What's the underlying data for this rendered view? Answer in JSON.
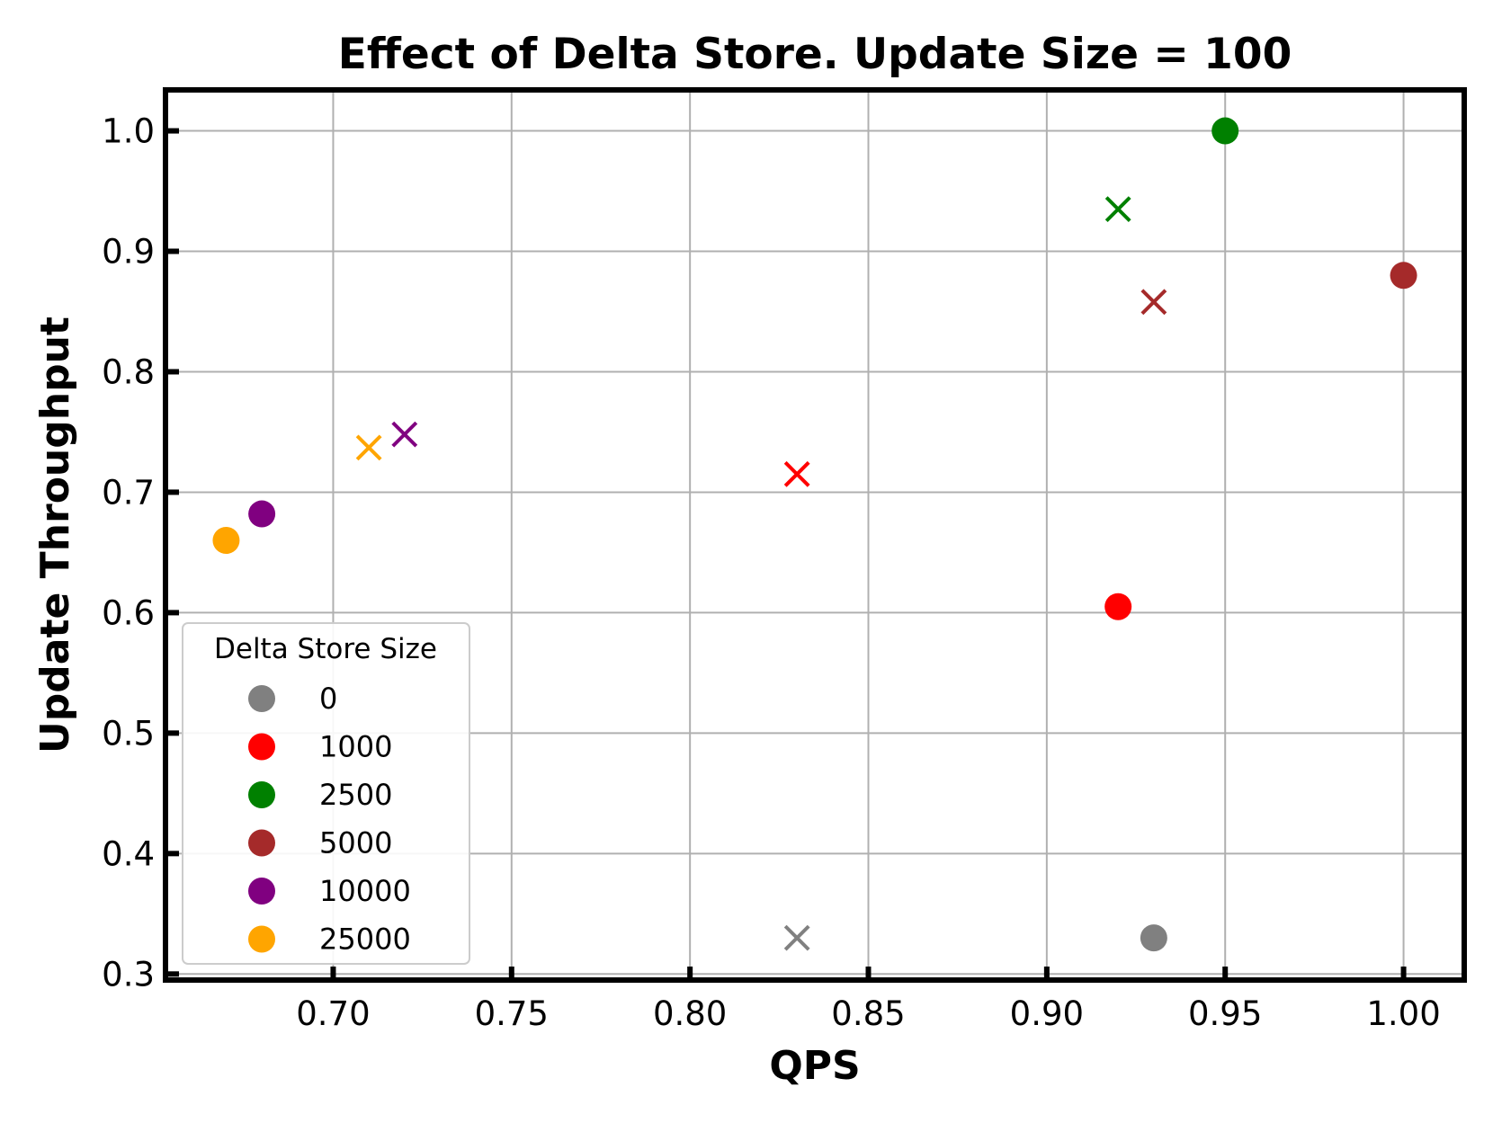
{
  "chart_data": {
    "type": "scatter",
    "title": "Effect of Delta Store. Update Size = 100",
    "xlabel": "QPS",
    "ylabel": "Update Throughput",
    "xlim": [
      0.653,
      1.017
    ],
    "ylim": [
      0.295,
      1.034
    ],
    "xticks": [
      0.7,
      0.75,
      0.8,
      0.85,
      0.9,
      0.95,
      1.0
    ],
    "xtick_labels": [
      "0.70",
      "0.75",
      "0.80",
      "0.85",
      "0.90",
      "0.95",
      "1.00"
    ],
    "yticks": [
      0.3,
      0.4,
      0.5,
      0.6,
      0.7,
      0.8,
      0.9,
      1.0
    ],
    "ytick_labels": [
      "0.3",
      "0.4",
      "0.5",
      "0.6",
      "0.7",
      "0.8",
      "0.9",
      "1.0"
    ],
    "grid": true,
    "legend": {
      "title": "Delta Store Size",
      "placement": "lower-left"
    },
    "series": [
      {
        "name": "0",
        "color": "#808080",
        "circle": {
          "x": 0.93,
          "y": 0.33
        },
        "cross": {
          "x": 0.83,
          "y": 0.33
        }
      },
      {
        "name": "1000",
        "color": "#ff0000",
        "circle": {
          "x": 0.92,
          "y": 0.605
        },
        "cross": {
          "x": 0.83,
          "y": 0.715
        }
      },
      {
        "name": "2500",
        "color": "#008000",
        "circle": {
          "x": 0.95,
          "y": 1.0
        },
        "cross": {
          "x": 0.92,
          "y": 0.935
        }
      },
      {
        "name": "5000",
        "color": "#a52a2a",
        "circle": {
          "x": 1.0,
          "y": 0.88
        },
        "cross": {
          "x": 0.93,
          "y": 0.858
        }
      },
      {
        "name": "10000",
        "color": "#800080",
        "circle": {
          "x": 0.68,
          "y": 0.682
        },
        "cross": {
          "x": 0.72,
          "y": 0.748
        }
      },
      {
        "name": "25000",
        "color": "#ffa500",
        "circle": {
          "x": 0.67,
          "y": 0.66
        },
        "cross": {
          "x": 0.71,
          "y": 0.737
        }
      }
    ]
  }
}
